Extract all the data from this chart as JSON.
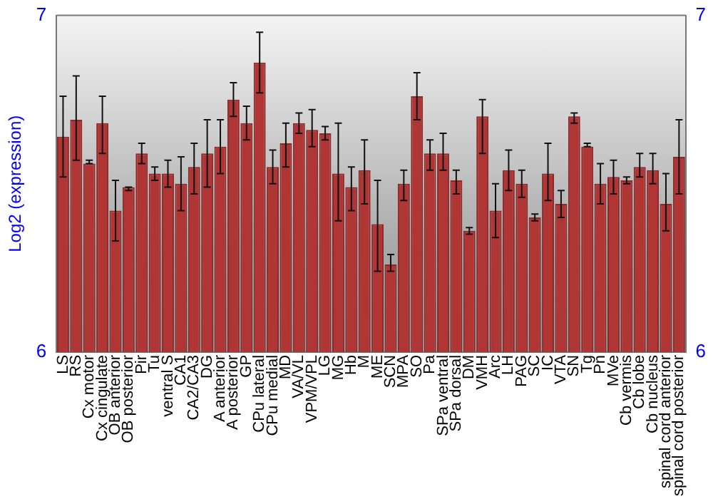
{
  "chart_data": {
    "type": "bar",
    "ylabel": "Log2 (expression)",
    "categories": [
      "LS",
      "RS",
      "Cx motor",
      "Cx cingulate",
      "OB anterior",
      "OB posterior",
      "Pir",
      "Tu",
      "ventral S",
      "CA1",
      "CA2/CA3",
      "DG",
      "A anterior",
      "A posterior",
      "GP",
      "CPu lateral",
      "CPu medial",
      "MD",
      "VA/VL",
      "VPM/VPL",
      "LG",
      "MG",
      "Hb",
      "M",
      "ME",
      "SCN",
      "MPA",
      "SO",
      "Pa",
      "SPa ventral",
      "SPa dorsal",
      "DM",
      "VMH",
      "Arc",
      "LH",
      "PAG",
      "SC",
      "IC",
      "VTA",
      "SN",
      "Tg",
      "Pn",
      "MVe",
      "Cb vermis",
      "Cb lobe",
      "Cb nucleus",
      "spinal cord anterior",
      "spinal cord posterior"
    ],
    "values": [
      6.64,
      6.69,
      6.56,
      6.68,
      6.42,
      6.49,
      6.59,
      6.53,
      6.53,
      6.5,
      6.55,
      6.59,
      6.61,
      6.75,
      6.68,
      6.86,
      6.55,
      6.62,
      6.68,
      6.66,
      6.65,
      6.53,
      6.49,
      6.54,
      6.38,
      6.26,
      6.5,
      6.76,
      6.59,
      6.59,
      6.51,
      6.36,
      6.7,
      6.42,
      6.54,
      6.5,
      6.4,
      6.53,
      6.44,
      6.7,
      6.61,
      6.5,
      6.52,
      6.51,
      6.55,
      6.54,
      6.44,
      6.58
    ],
    "errors": [
      [
        6.52,
        6.76
      ],
      [
        6.57,
        6.82
      ],
      [
        6.56,
        6.57
      ],
      [
        6.59,
        6.76
      ],
      [
        6.33,
        6.51
      ],
      [
        6.48,
        6.49
      ],
      [
        6.56,
        6.62
      ],
      [
        6.51,
        6.55
      ],
      [
        6.49,
        6.57
      ],
      [
        6.42,
        6.58
      ],
      [
        6.47,
        6.62
      ],
      [
        6.49,
        6.69
      ],
      [
        6.53,
        6.69
      ],
      [
        6.7,
        6.8
      ],
      [
        6.63,
        6.73
      ],
      [
        6.77,
        6.95
      ],
      [
        6.5,
        6.6
      ],
      [
        6.55,
        6.68
      ],
      [
        6.65,
        6.71
      ],
      [
        6.61,
        6.72
      ],
      [
        6.63,
        6.67
      ],
      [
        6.39,
        6.68
      ],
      [
        6.42,
        6.55
      ],
      [
        6.44,
        6.63
      ],
      [
        6.24,
        6.51
      ],
      [
        6.24,
        6.29
      ],
      [
        6.45,
        6.54
      ],
      [
        6.69,
        6.83
      ],
      [
        6.54,
        6.63
      ],
      [
        6.54,
        6.65
      ],
      [
        6.47,
        6.54
      ],
      [
        6.35,
        6.37
      ],
      [
        6.59,
        6.75
      ],
      [
        6.34,
        6.5
      ],
      [
        6.48,
        6.6
      ],
      [
        6.46,
        6.54
      ],
      [
        6.39,
        6.41
      ],
      [
        6.45,
        6.62
      ],
      [
        6.4,
        6.48
      ],
      [
        6.68,
        6.71
      ],
      [
        6.61,
        6.62
      ],
      [
        6.44,
        6.56
      ],
      [
        6.47,
        6.57
      ],
      [
        6.5,
        6.52
      ],
      [
        6.52,
        6.59
      ],
      [
        6.5,
        6.59
      ],
      [
        6.36,
        6.53
      ],
      [
        6.47,
        6.69
      ]
    ],
    "color": "#b03535",
    "ylim": [
      6,
      7
    ],
    "yticks": [
      6,
      7
    ],
    "y2lim": [
      6,
      7
    ],
    "y2ticks": [
      6,
      7
    ],
    "grid": false,
    "legend": false
  }
}
